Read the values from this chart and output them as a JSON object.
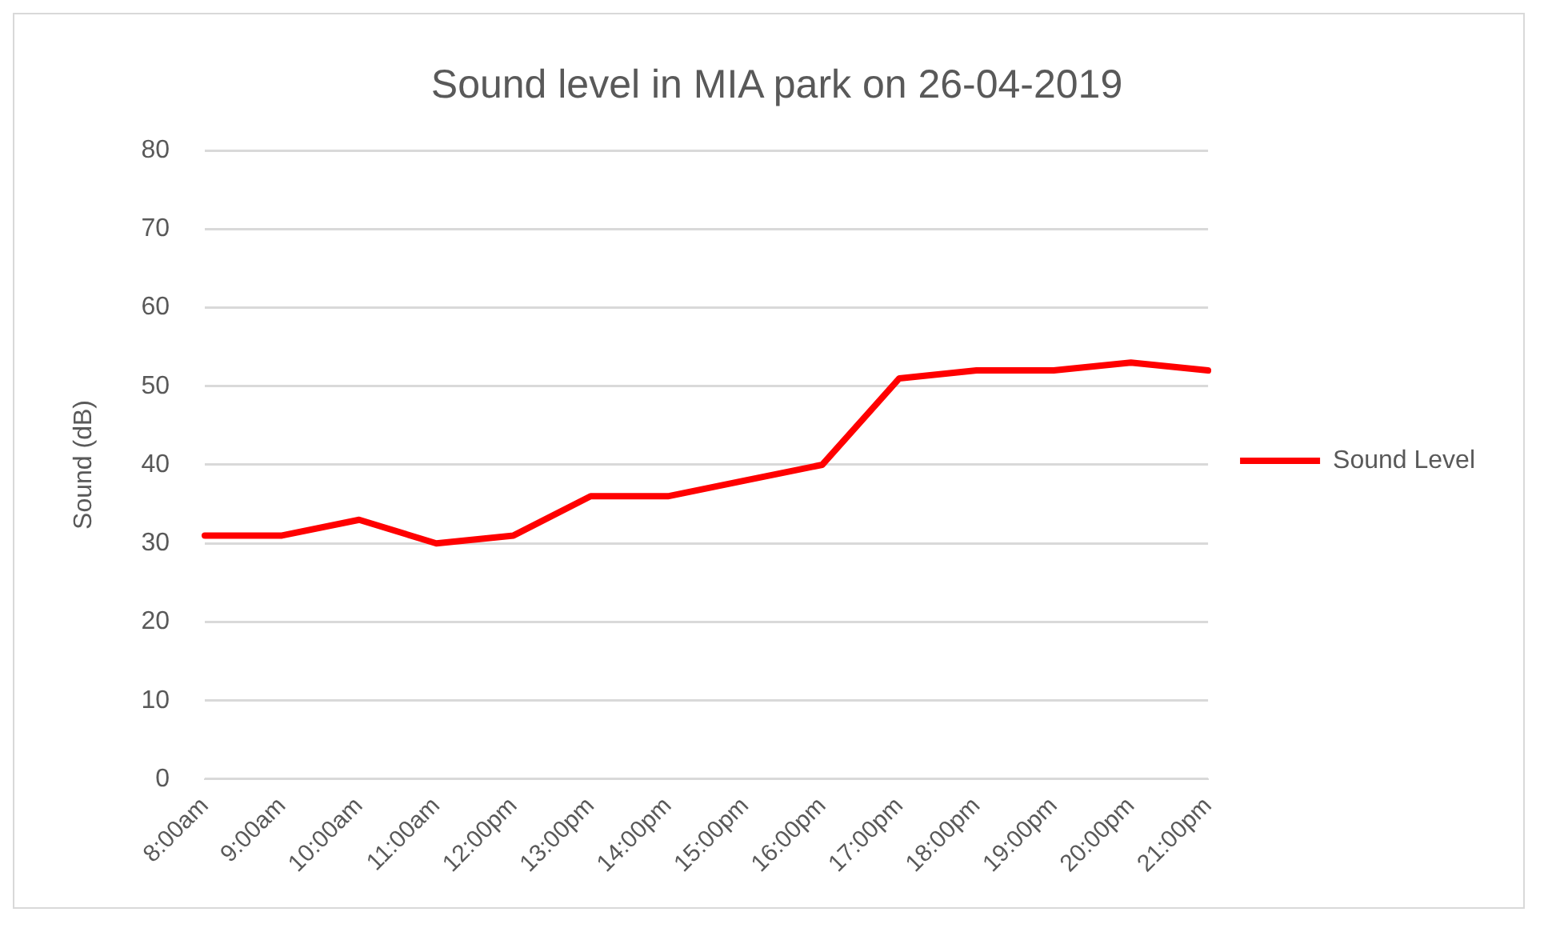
{
  "chart_data": {
    "type": "line",
    "title": "Sound level in MIA park on 26-04-2019",
    "ylabel": "Sound (dB)",
    "categories": [
      "8:00am",
      "9:00am",
      "10:00am",
      "11:00am",
      "12:00pm",
      "13:00pm",
      "14:00pm",
      "15:00pm",
      "16:00pm",
      "17:00pm",
      "18:00pm",
      "19:00pm",
      "20:00pm",
      "21:00pm"
    ],
    "series": [
      {
        "name": "Sound Level",
        "color": "#ff0000",
        "values": [
          31,
          31,
          33,
          30,
          31,
          36,
          36,
          38,
          40,
          51,
          52,
          52,
          53,
          52
        ]
      }
    ],
    "ylim": [
      0,
      80
    ],
    "yticks": [
      0,
      10,
      20,
      30,
      40,
      50,
      60,
      70,
      80
    ],
    "grid": "y",
    "legend": "right",
    "marker": "none",
    "line_style": "solid"
  }
}
